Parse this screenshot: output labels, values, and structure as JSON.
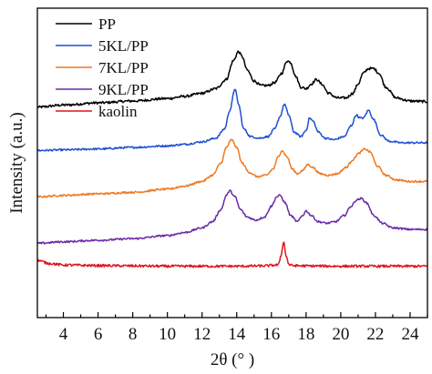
{
  "chart_data": {
    "type": "line",
    "title": "",
    "xlabel": "2θ (° )",
    "ylabel": "Intensity (a.u.)",
    "xlim": [
      2.5,
      25
    ],
    "xticks": [
      4,
      6,
      8,
      10,
      12,
      14,
      16,
      18,
      20,
      22,
      24
    ],
    "xtick_labels": [
      "4",
      "6",
      "8",
      "10",
      "12",
      "14",
      "16",
      "18",
      "20",
      "22",
      "24"
    ],
    "yticks_shown": false,
    "grid": false,
    "legend_position": "top-left",
    "legend_has_frame": false,
    "series": [
      {
        "name": "PP",
        "color": "#000000",
        "baseline": 0.68,
        "noise": 0.004,
        "x": [
          2.5,
          4,
          6,
          8,
          10,
          11,
          12,
          12.8,
          13.4,
          13.8,
          14.1,
          14.3,
          14.6,
          15,
          15.4,
          15.8,
          16.2,
          16.6,
          16.9,
          17.1,
          17.4,
          17.7,
          18.0,
          18.3,
          18.6,
          18.9,
          19.3,
          19.8,
          20.3,
          20.7,
          21.0,
          21.3,
          21.6,
          21.9,
          22.2,
          22.6,
          23.2,
          24,
          25
        ],
        "y": [
          0.68,
          0.687,
          0.694,
          0.7,
          0.708,
          0.715,
          0.725,
          0.74,
          0.77,
          0.83,
          0.86,
          0.845,
          0.8,
          0.765,
          0.75,
          0.75,
          0.76,
          0.79,
          0.83,
          0.825,
          0.78,
          0.745,
          0.74,
          0.755,
          0.77,
          0.755,
          0.725,
          0.71,
          0.71,
          0.725,
          0.755,
          0.79,
          0.805,
          0.805,
          0.79,
          0.745,
          0.71,
          0.7,
          0.698
        ]
      },
      {
        "name": "5KL/PP",
        "color": "#1f4fd4",
        "baseline": 0.54,
        "noise": 0.003,
        "x": [
          2.5,
          4,
          6,
          8,
          10,
          11,
          12,
          12.8,
          13.3,
          13.6,
          13.9,
          14.1,
          14.4,
          14.8,
          15.3,
          15.8,
          16.2,
          16.5,
          16.75,
          17.0,
          17.3,
          17.7,
          18.0,
          18.2,
          18.4,
          18.7,
          19.1,
          19.6,
          20.2,
          20.6,
          20.9,
          21.1,
          21.3,
          21.6,
          21.9,
          22.3,
          22.8,
          23.5,
          24.2,
          25
        ],
        "y": [
          0.54,
          0.542,
          0.545,
          0.55,
          0.555,
          0.56,
          0.568,
          0.58,
          0.61,
          0.67,
          0.74,
          0.69,
          0.61,
          0.585,
          0.58,
          0.585,
          0.61,
          0.65,
          0.69,
          0.655,
          0.6,
          0.585,
          0.605,
          0.645,
          0.635,
          0.6,
          0.58,
          0.575,
          0.585,
          0.62,
          0.655,
          0.645,
          0.645,
          0.67,
          0.64,
          0.59,
          0.57,
          0.565,
          0.565,
          0.565
        ]
      },
      {
        "name": "7KL/PP",
        "color": "#f07820",
        "baseline": 0.39,
        "noise": 0.003,
        "x": [
          2.5,
          4,
          6,
          8,
          10,
          11,
          12,
          12.6,
          13.1,
          13.4,
          13.7,
          14.0,
          14.3,
          14.7,
          15.2,
          15.7,
          16.1,
          16.4,
          16.6,
          16.9,
          17.2,
          17.5,
          17.8,
          18.1,
          18.4,
          18.8,
          19.3,
          19.8,
          20.3,
          20.7,
          21.0,
          21.4,
          21.7,
          22.1,
          22.6,
          23.2,
          24,
          25
        ],
        "y": [
          0.39,
          0.395,
          0.4,
          0.405,
          0.415,
          0.425,
          0.44,
          0.46,
          0.5,
          0.55,
          0.575,
          0.55,
          0.5,
          0.47,
          0.455,
          0.46,
          0.48,
          0.52,
          0.54,
          0.52,
          0.48,
          0.465,
          0.475,
          0.495,
          0.485,
          0.465,
          0.46,
          0.465,
          0.485,
          0.51,
          0.53,
          0.545,
          0.535,
          0.49,
          0.46,
          0.445,
          0.44,
          0.44
        ]
      },
      {
        "name": "9KL/PP",
        "color": "#6a2aa8",
        "baseline": 0.24,
        "noise": 0.003,
        "x": [
          2.5,
          4,
          6,
          8,
          10,
          11,
          12,
          12.6,
          13.1,
          13.4,
          13.6,
          13.9,
          14.2,
          14.6,
          15.1,
          15.6,
          16.0,
          16.3,
          16.5,
          16.8,
          17.1,
          17.5,
          17.8,
          18.0,
          18.3,
          18.7,
          19.2,
          19.7,
          20.2,
          20.6,
          20.9,
          21.2,
          21.5,
          21.9,
          22.4,
          23,
          24,
          25
        ],
        "y": [
          0.24,
          0.245,
          0.25,
          0.255,
          0.265,
          0.275,
          0.29,
          0.31,
          0.35,
          0.395,
          0.41,
          0.39,
          0.35,
          0.325,
          0.315,
          0.325,
          0.36,
          0.39,
          0.395,
          0.37,
          0.33,
          0.31,
          0.33,
          0.345,
          0.33,
          0.31,
          0.305,
          0.31,
          0.33,
          0.36,
          0.38,
          0.385,
          0.37,
          0.33,
          0.305,
          0.29,
          0.285,
          0.285
        ]
      },
      {
        "name": "kaolin",
        "color": "#e0141e",
        "baseline": 0.175,
        "noise": 0.004,
        "x": [
          2.5,
          3.2,
          4,
          6,
          8,
          10,
          12,
          14,
          15.5,
          16.4,
          16.55,
          16.7,
          16.85,
          17.0,
          17.2,
          18,
          20,
          22,
          24,
          25
        ],
        "y": [
          0.185,
          0.175,
          0.17,
          0.168,
          0.167,
          0.166,
          0.166,
          0.166,
          0.167,
          0.17,
          0.2,
          0.245,
          0.2,
          0.172,
          0.168,
          0.167,
          0.166,
          0.166,
          0.166,
          0.166
        ]
      }
    ]
  }
}
